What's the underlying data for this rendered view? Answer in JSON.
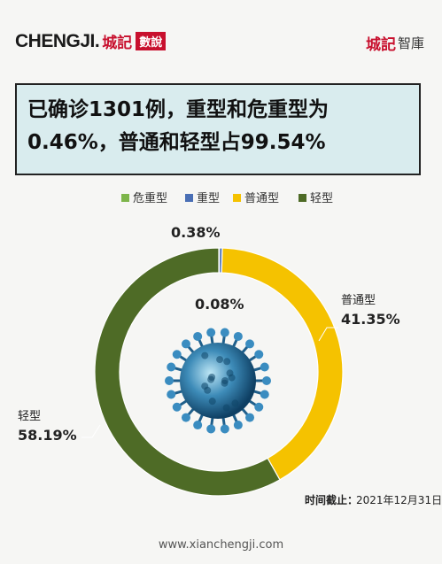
{
  "header": {
    "brand_en": "CHENGJI.",
    "brand_cn": "城記",
    "brand_box": "數說",
    "brand_right_1": "城記",
    "brand_right_2": "智庫"
  },
  "title": "已确诊1301例，重型和危重型为0.46%，普通和轻型占99.54%",
  "chart_data": {
    "type": "pie",
    "categories": [
      "危重型",
      "重型",
      "普通型",
      "轻型"
    ],
    "values": [
      0.08,
      0.38,
      41.35,
      58.19
    ],
    "labels": [
      "0.08%",
      "0.38%",
      "41.35%",
      "58.19%"
    ],
    "colors": [
      "#7db54a",
      "#4a6fb5",
      "#f5c200",
      "#4e6b26"
    ],
    "legend_position": "top"
  },
  "footer": {
    "date_label": "时间截止：",
    "date_value": "2021年12月31日",
    "url": "www.xianchengji.com"
  }
}
